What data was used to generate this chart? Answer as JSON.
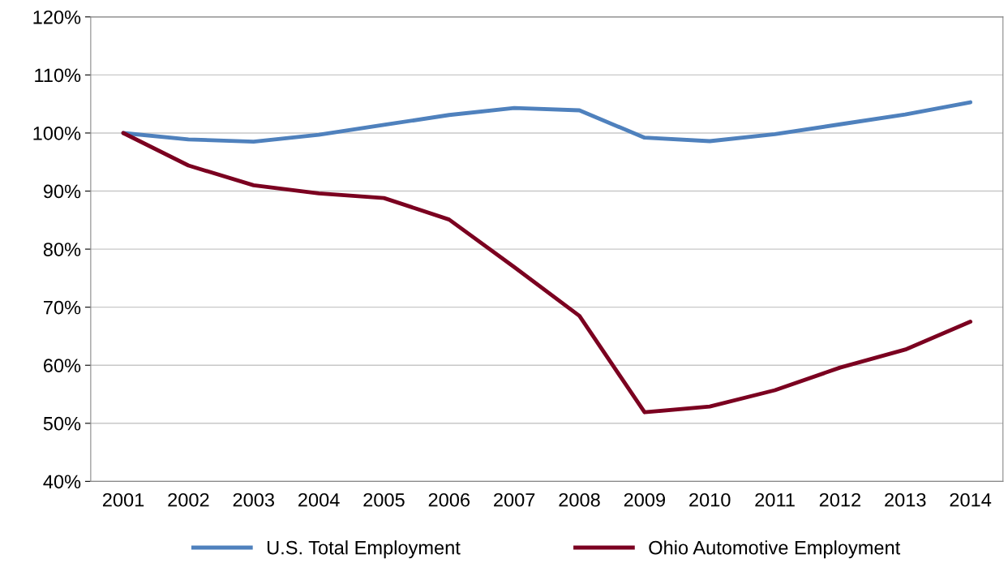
{
  "chart_data": {
    "type": "line",
    "categories": [
      "2001",
      "2002",
      "2003",
      "2004",
      "2005",
      "2006",
      "2007",
      "2008",
      "2009",
      "2010",
      "2011",
      "2012",
      "2013",
      "2014"
    ],
    "series": [
      {
        "name": "U.S. Total Employment",
        "color": "#4f81bd",
        "values": [
          100,
          98.9,
          98.5,
          99.7,
          101.4,
          103.1,
          104.3,
          103.9,
          99.2,
          98.6,
          99.8,
          101.5,
          103.2,
          105.3
        ]
      },
      {
        "name": "Ohio Automotive Employment",
        "color": "#7b0020",
        "values": [
          100,
          94.4,
          91.0,
          89.6,
          88.8,
          85.1,
          76.9,
          68.5,
          51.9,
          52.9,
          55.7,
          59.6,
          62.7,
          67.5
        ]
      }
    ],
    "ylim": [
      40,
      120
    ],
    "yticks": [
      {
        "value": 40,
        "label": "40%"
      },
      {
        "value": 50,
        "label": "50%"
      },
      {
        "value": 60,
        "label": "60%"
      },
      {
        "value": 70,
        "label": "70%"
      },
      {
        "value": 80,
        "label": "80%"
      },
      {
        "value": 90,
        "label": "90%"
      },
      {
        "value": 100,
        "label": "100%"
      },
      {
        "value": 110,
        "label": "110%"
      },
      {
        "value": 120,
        "label": "120%"
      }
    ],
    "grid": "y",
    "legend": "bottom",
    "marker": "none",
    "line_style": "solid"
  }
}
